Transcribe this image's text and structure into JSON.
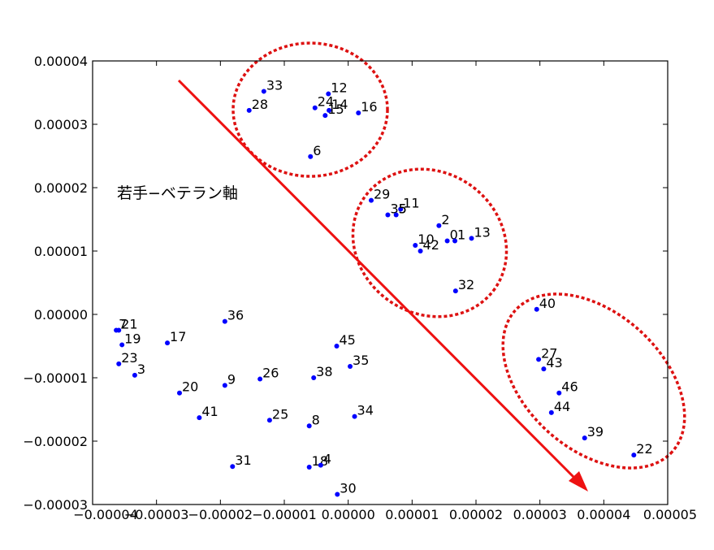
{
  "chart_data": {
    "type": "scatter",
    "title": "",
    "xlabel": "",
    "ylabel": "",
    "xlim": [
      -4e-05,
      5e-05
    ],
    "ylim": [
      -3e-05,
      4e-05
    ],
    "xticks": [
      {
        "value": -4e-05,
        "label": "−0.00004"
      },
      {
        "value": -3e-05,
        "label": "−0.00003"
      },
      {
        "value": -2e-05,
        "label": "−0.00002"
      },
      {
        "value": -1e-05,
        "label": "−0.00001"
      },
      {
        "value": 0.0,
        "label": "0.00000"
      },
      {
        "value": 1e-05,
        "label": "0.00001"
      },
      {
        "value": 2e-05,
        "label": "0.00002"
      },
      {
        "value": 3e-05,
        "label": "0.00003"
      },
      {
        "value": 4e-05,
        "label": "0.00004"
      },
      {
        "value": 5e-05,
        "label": "0.00005"
      }
    ],
    "yticks": [
      {
        "value": -3e-05,
        "label": "−0.00003"
      },
      {
        "value": -2e-05,
        "label": "−0.00002"
      },
      {
        "value": -1e-05,
        "label": "−0.00001"
      },
      {
        "value": 0.0,
        "label": "0.00000"
      },
      {
        "value": 1e-05,
        "label": "0.00001"
      },
      {
        "value": 2e-05,
        "label": "0.00002"
      },
      {
        "value": 3e-05,
        "label": "0.00003"
      },
      {
        "value": 4e-05,
        "label": "0.00004"
      }
    ],
    "grid": false,
    "point_color": "#0000ff",
    "points": [
      {
        "label": "33",
        "x": -1.32e-05,
        "y": 3.52e-05
      },
      {
        "label": "12",
        "x": -3.1e-06,
        "y": 3.48e-05
      },
      {
        "label": "28",
        "x": -1.55e-05,
        "y": 3.22e-05
      },
      {
        "label": "24",
        "x": -5.2e-06,
        "y": 3.26e-05
      },
      {
        "label": "14",
        "x": -3e-06,
        "y": 3.22e-05
      },
      {
        "label": "15",
        "x": -3.6e-06,
        "y": 3.14e-05
      },
      {
        "label": "16",
        "x": 1.6e-06,
        "y": 3.18e-05
      },
      {
        "label": "6",
        "x": -5.9e-06,
        "y": 2.49e-05
      },
      {
        "label": "29",
        "x": 3.6e-06,
        "y": 1.8e-05
      },
      {
        "label": "11",
        "x": 8.2e-06,
        "y": 1.66e-05
      },
      {
        "label": "35",
        "x": 6.2e-06,
        "y": 1.57e-05
      },
      {
        "label": "5",
        "x": 7.5e-06,
        "y": 1.57e-05
      },
      {
        "label": "2",
        "x": 1.42e-05,
        "y": 1.4e-05
      },
      {
        "label": "0",
        "x": 1.55e-05,
        "y": 1.16e-05
      },
      {
        "label": "1",
        "x": 1.67e-05,
        "y": 1.16e-05
      },
      {
        "label": "13",
        "x": 1.93e-05,
        "y": 1.2e-05
      },
      {
        "label": "10",
        "x": 1.05e-05,
        "y": 1.09e-05
      },
      {
        "label": "42",
        "x": 1.13e-05,
        "y": 1e-05
      },
      {
        "label": "32",
        "x": 1.68e-05,
        "y": 3.7e-06
      },
      {
        "label": "40",
        "x": 2.95e-05,
        "y": 8e-07
      },
      {
        "label": "27",
        "x": 2.98e-05,
        "y": -7.1e-06
      },
      {
        "label": "43",
        "x": 3.06e-05,
        "y": -8.6e-06
      },
      {
        "label": "46",
        "x": 3.3e-05,
        "y": -1.24e-05
      },
      {
        "label": "44",
        "x": 3.18e-05,
        "y": -1.55e-05
      },
      {
        "label": "39",
        "x": 3.7e-05,
        "y": -1.95e-05
      },
      {
        "label": "22",
        "x": 4.47e-05,
        "y": -2.22e-05
      },
      {
        "label": "7",
        "x": -3.63e-05,
        "y": -2.5e-06
      },
      {
        "label": "21",
        "x": -3.59e-05,
        "y": -2.5e-06
      },
      {
        "label": "19",
        "x": -3.54e-05,
        "y": -4.8e-06
      },
      {
        "label": "17",
        "x": -2.83e-05,
        "y": -4.5e-06
      },
      {
        "label": "36",
        "x": -1.93e-05,
        "y": -1.1e-06
      },
      {
        "label": "23",
        "x": -3.59e-05,
        "y": -7.8e-06
      },
      {
        "label": "3",
        "x": -3.34e-05,
        "y": -9.6e-06
      },
      {
        "label": "20",
        "x": -2.64e-05,
        "y": -1.24e-05
      },
      {
        "label": "9",
        "x": -1.93e-05,
        "y": -1.12e-05
      },
      {
        "label": "26",
        "x": -1.38e-05,
        "y": -1.02e-05
      },
      {
        "label": "41",
        "x": -2.33e-05,
        "y": -1.63e-05
      },
      {
        "label": "25",
        "x": -1.23e-05,
        "y": -1.67e-05
      },
      {
        "label": "8",
        "x": -6.1e-06,
        "y": -1.76e-05
      },
      {
        "label": "45",
        "x": -1.8e-06,
        "y": -5e-06
      },
      {
        "label": "35",
        "x": 3e-07,
        "y": -8.2e-06
      },
      {
        "label": "38",
        "x": -5.4e-06,
        "y": -1e-05
      },
      {
        "label": "34",
        "x": 1e-06,
        "y": -1.61e-05
      },
      {
        "label": "31",
        "x": -1.81e-05,
        "y": -2.4e-05
      },
      {
        "label": "18",
        "x": -6.1e-06,
        "y": -2.41e-05
      },
      {
        "label": "4",
        "x": -4.3e-06,
        "y": -2.38e-05
      },
      {
        "label": "30",
        "x": -1.7e-06,
        "y": -2.84e-05
      }
    ],
    "annotations": {
      "axis_text": "若手−ベテラン軸",
      "arrow_color": "#ee1111",
      "cluster_color": "#dd1111"
    }
  }
}
